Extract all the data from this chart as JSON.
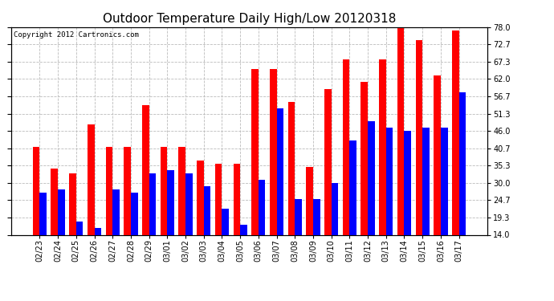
{
  "title": "Outdoor Temperature Daily High/Low 20120318",
  "copyright": "Copyright 2012 Cartronics.com",
  "dates": [
    "02/23",
    "02/24",
    "02/25",
    "02/26",
    "02/27",
    "02/28",
    "02/29",
    "03/01",
    "03/02",
    "03/03",
    "03/04",
    "03/05",
    "03/06",
    "03/07",
    "03/08",
    "03/09",
    "03/10",
    "03/11",
    "03/12",
    "03/13",
    "03/14",
    "03/15",
    "03/16",
    "03/17"
  ],
  "highs": [
    41.0,
    34.5,
    33.0,
    48.0,
    41.0,
    41.0,
    54.0,
    41.0,
    41.0,
    37.0,
    36.0,
    36.0,
    65.0,
    65.0,
    55.0,
    35.0,
    59.0,
    68.0,
    61.0,
    68.0,
    78.0,
    74.0,
    63.0,
    77.0
  ],
  "lows": [
    27.0,
    28.0,
    18.0,
    16.0,
    28.0,
    27.0,
    33.0,
    34.0,
    33.0,
    29.0,
    22.0,
    17.0,
    31.0,
    53.0,
    25.0,
    25.0,
    30.0,
    43.0,
    49.0,
    47.0,
    46.0,
    47.0,
    47.0,
    58.0
  ],
  "high_color": "#ff0000",
  "low_color": "#0000ff",
  "background_color": "#ffffff",
  "grid_color": "#bbbbbb",
  "ylim": [
    14.0,
    78.0
  ],
  "yticks": [
    14.0,
    19.3,
    24.7,
    30.0,
    35.3,
    40.7,
    46.0,
    51.3,
    56.7,
    62.0,
    67.3,
    72.7,
    78.0
  ],
  "title_fontsize": 11,
  "tick_fontsize": 7,
  "copyright_fontsize": 6.5,
  "bar_width": 0.38
}
